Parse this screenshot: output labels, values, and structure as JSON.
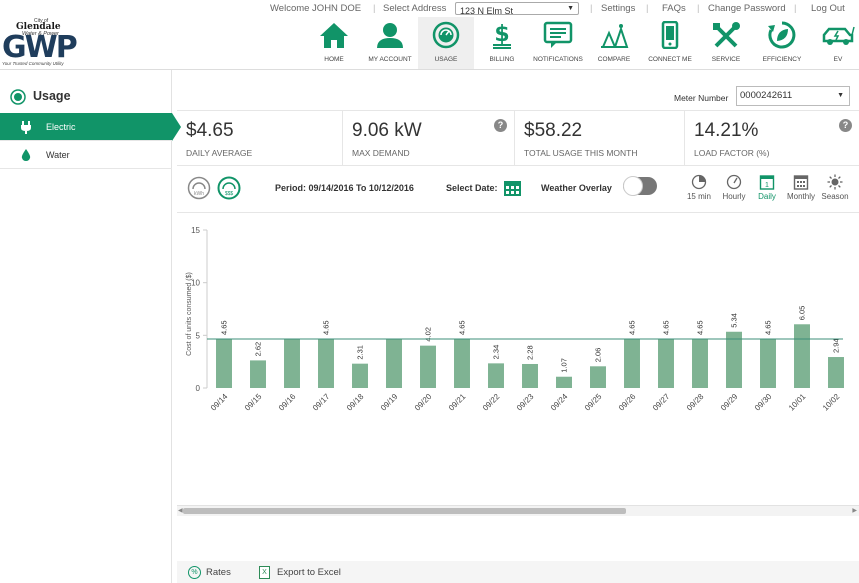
{
  "topbar": {
    "welcome": "Welcome JOHN DOE",
    "select_address_label": "Select Address",
    "address_value": "123 N Elm St",
    "links": [
      "Settings",
      "FAQs",
      "Change Password",
      "Log Out"
    ]
  },
  "logo": {
    "city": "City of",
    "name_line1": "Glendale",
    "name_line2": "Water & Power",
    "big": "GWP",
    "tagline": "Your Trusted Community Utility"
  },
  "nav": {
    "items": [
      {
        "label": "HOME",
        "icon": "home-icon"
      },
      {
        "label": "MY ACCOUNT",
        "icon": "user-icon"
      },
      {
        "label": "USAGE",
        "icon": "gauge-icon",
        "active": true
      },
      {
        "label": "BILLING",
        "icon": "dollar-icon"
      },
      {
        "label": "NOTIFICATIONS",
        "icon": "message-icon"
      },
      {
        "label": "COMPARE",
        "icon": "compare-icon"
      },
      {
        "label": "CONNECT ME",
        "icon": "phone-icon"
      },
      {
        "label": "SERVICE",
        "icon": "tools-icon"
      },
      {
        "label": "EFFICIENCY",
        "icon": "leaf-cycle-icon"
      },
      {
        "label": "EV",
        "icon": "electric-car-icon"
      }
    ],
    "accent": "#119468"
  },
  "sidebar": {
    "title": "Usage",
    "items": [
      {
        "label": "Electric",
        "icon": "plug-icon",
        "active": true
      },
      {
        "label": "Water",
        "icon": "water-drop-icon"
      }
    ]
  },
  "meter": {
    "label": "Meter Number",
    "value": "0000242611"
  },
  "stats": [
    {
      "value": "$4.65",
      "caption": "DAILY AVERAGE"
    },
    {
      "value": "9.06 kW",
      "caption": "MAX DEMAND",
      "help": "?"
    },
    {
      "value": "$58.22",
      "caption": "TOTAL USAGE THIS MONTH"
    },
    {
      "value": "14.21%",
      "caption": "LOAD FACTOR (%)",
      "help": "?"
    }
  ],
  "controls": {
    "period": "Period: 09/14/2016 To 10/12/2016",
    "select_date": "Select Date:",
    "weather_overlay": "Weather Overlay",
    "units": [
      "kWh",
      "$$$"
    ],
    "intervals": [
      {
        "label": "15 min",
        "icon": "clock-icon"
      },
      {
        "label": "Hourly",
        "icon": "speedometer-icon"
      },
      {
        "label": "Daily",
        "icon": "calendar-day-icon",
        "active": true
      },
      {
        "label": "Monthly",
        "icon": "calendar-month-icon"
      },
      {
        "label": "Season",
        "icon": "sun-icon"
      }
    ]
  },
  "chart_data": {
    "type": "bar",
    "ylabel": "Cost of units consumed ($)",
    "ylim": [
      0,
      15
    ],
    "yticks": [
      0,
      5,
      10,
      15
    ],
    "reference_line": 4.65,
    "categories": [
      "09/14",
      "09/15",
      "09/16",
      "09/17",
      "09/18",
      "09/19",
      "09/20",
      "09/21",
      "09/22",
      "09/23",
      "09/24",
      "09/25",
      "09/26",
      "09/27",
      "09/28",
      "09/29",
      "09/30",
      "10/01",
      "10/02"
    ],
    "values": [
      4.65,
      2.62,
      4.65,
      4.65,
      2.31,
      4.65,
      4.02,
      4.65,
      2.34,
      2.28,
      1.07,
      2.06,
      4.65,
      4.65,
      4.65,
      5.34,
      4.65,
      6.05,
      2.94
    ],
    "data_labels": [
      "4.65",
      "2.62",
      "",
      "4.65",
      "2.31",
      "",
      "4.02",
      "4.65",
      "2.34",
      "2.28",
      "1.07",
      "2.06",
      "4.65",
      "4.65",
      "4.65",
      "5.34",
      "4.65",
      "6.05",
      "2.94"
    ],
    "bar_color": "#7fb393",
    "grid": false
  },
  "footer": {
    "rates": "Rates",
    "rates_icon": "%",
    "export": "Export to Excel",
    "export_icon": "X"
  }
}
